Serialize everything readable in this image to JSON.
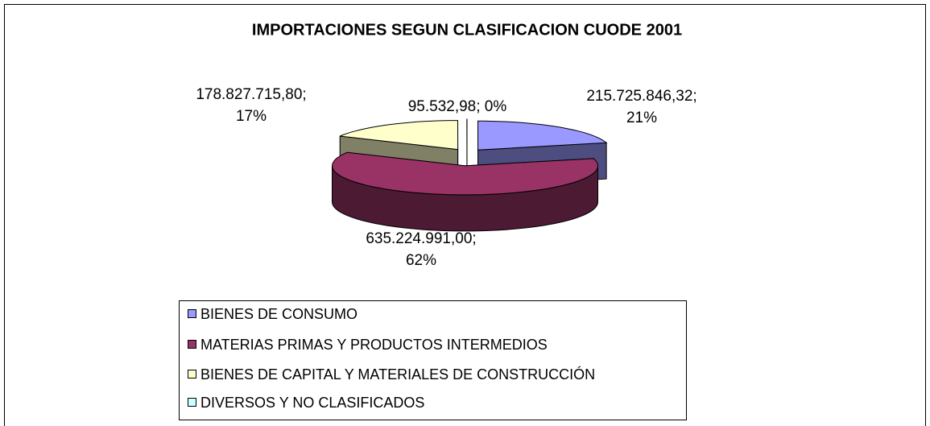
{
  "chart_data": {
    "type": "pie",
    "title": "IMPORTACIONES SEGUN CLASIFICACION CUODE 2001",
    "categories": [
      "BIENES DE CONSUMO",
      "MATERIAS PRIMAS Y PRODUCTOS INTERMEDIOS",
      "BIENES DE CAPITAL Y MATERIALES DE CONSTRUCCIÓN",
      "DIVERSOS Y NO CLASIFICADOS"
    ],
    "values": [
      215725846.32,
      635224991.0,
      178827715.8,
      95532.98
    ],
    "value_labels": [
      [
        "215.725.846,32;",
        "21%"
      ],
      [
        "635.224.991,00;",
        "62%"
      ],
      [
        "178.827.715,80;",
        "17%"
      ],
      [
        "95.532,98; 0%"
      ]
    ],
    "colors": [
      "#9999ff",
      "#993366",
      "#ffffcc",
      "#ccffff"
    ],
    "legend": "bottom"
  }
}
